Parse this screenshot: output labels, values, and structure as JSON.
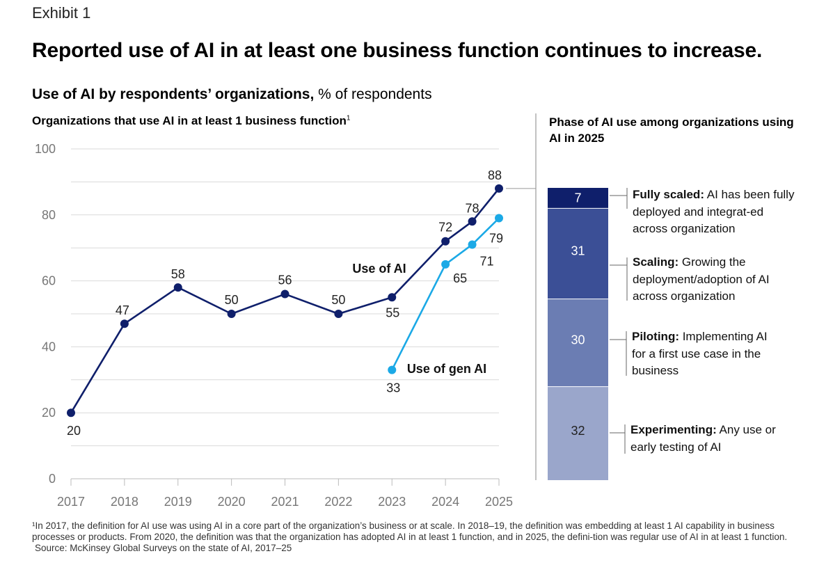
{
  "header": {
    "exhibit": "Exhibit 1",
    "headline": "Reported use of AI in at least one business function continues to increase.",
    "subtitle_bold": "Use of AI by respondents’ organizations,",
    "subtitle_light": " % of respondents"
  },
  "left_panel": {
    "title": "Organizations that use AI in at least 1 business function",
    "title_footnote_mark": "1"
  },
  "right_panel": {
    "title": "Phase of AI use among organizations using AI in 2025"
  },
  "colors": {
    "ai": "#0f1f6b",
    "genai": "#1ba9e6",
    "grid": "#d9d9d9",
    "axis_text": "#777777",
    "seg_fully": "#0f1f6b",
    "seg_scaling": "#3b4f96",
    "seg_piloting": "#6b7db3",
    "seg_experimenting": "#9aa6cb"
  },
  "chart_data": [
    {
      "type": "line",
      "y_ticks": [
        0,
        20,
        40,
        60,
        80,
        100
      ],
      "ylim": [
        0,
        100
      ],
      "x_ticks": [
        "2017",
        "2018",
        "2019",
        "2020",
        "2021",
        "2022",
        "2023",
        "2024",
        "2025"
      ],
      "xlim": [
        2017,
        2025
      ],
      "grid": true,
      "series": [
        {
          "name": "Use of AI",
          "points": [
            {
              "x": 2017,
              "y": 20,
              "label": "20"
            },
            {
              "x": 2018,
              "y": 47,
              "label": "47"
            },
            {
              "x": 2019,
              "y": 58,
              "label": "58"
            },
            {
              "x": 2020,
              "y": 50,
              "label": "50"
            },
            {
              "x": 2021,
              "y": 56,
              "label": "56"
            },
            {
              "x": 2022,
              "y": 50,
              "label": "50"
            },
            {
              "x": 2023,
              "y": 55,
              "label": "55"
            },
            {
              "x": 2024,
              "y": 72,
              "label": "72"
            },
            {
              "x": 2024.5,
              "y": 78,
              "label": "78"
            },
            {
              "x": 2025,
              "y": 88,
              "label": "88"
            }
          ]
        },
        {
          "name": "Use of gen AI",
          "points": [
            {
              "x": 2023,
              "y": 33,
              "label": "33"
            },
            {
              "x": 2024,
              "y": 65,
              "label": "65"
            },
            {
              "x": 2024.5,
              "y": 71,
              "label": "71"
            },
            {
              "x": 2025,
              "y": 79,
              "label": "79"
            }
          ]
        }
      ]
    },
    {
      "type": "bar",
      "stacked": true,
      "segments": [
        {
          "key": "fully",
          "value": 7,
          "label": "7",
          "title": "Fully scaled:",
          "desc": " AI has been fully deployed and integrat-ed across organization"
        },
        {
          "key": "scaling",
          "value": 31,
          "label": "31",
          "title": "Scaling:",
          "desc": " Growing the deployment/adoption of AI across organization"
        },
        {
          "key": "piloting",
          "value": 30,
          "label": "30",
          "title": "Piloting:",
          "desc": " Implementing AI for a first use case in the business"
        },
        {
          "key": "experimenting",
          "value": 32,
          "label": "32",
          "title": "Experimenting:",
          "desc": " Any use or early testing of AI"
        }
      ]
    }
  ],
  "footer": {
    "footnote": "¹In 2017, the definition for AI use was using AI in a core part of the organization’s business or at scale. In 2018–19, the definition was embedding at least 1 AI capability in business processes or products. From 2020, the definition was that the organization has adopted AI in at least 1 function, and in 2025, the defini-tion was regular use of AI in at least 1 function.",
    "source": "Source: McKinsey Global Surveys on the state of AI, 2017–25"
  }
}
